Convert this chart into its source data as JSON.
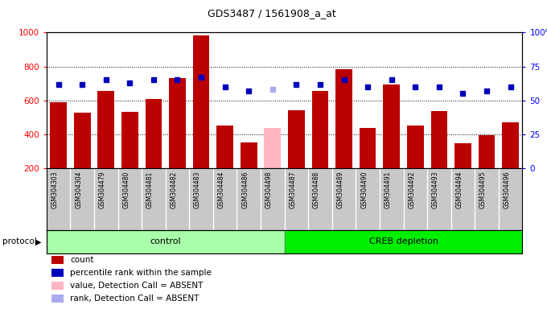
{
  "title": "GDS3487 / 1561908_a_at",
  "samples": [
    "GSM304303",
    "GSM304304",
    "GSM304479",
    "GSM304480",
    "GSM304481",
    "GSM304482",
    "GSM304483",
    "GSM304484",
    "GSM304486",
    "GSM304498",
    "GSM304487",
    "GSM304488",
    "GSM304489",
    "GSM304490",
    "GSM304491",
    "GSM304492",
    "GSM304493",
    "GSM304494",
    "GSM304495",
    "GSM304496"
  ],
  "counts": [
    590,
    527,
    655,
    533,
    607,
    731,
    981,
    453,
    355,
    440,
    543,
    657,
    786,
    440,
    693,
    450,
    537,
    350,
    395,
    470
  ],
  "percentiles": [
    62,
    62,
    65,
    63,
    65,
    65,
    67,
    60,
    57,
    58,
    62,
    62,
    65,
    60,
    65,
    60,
    60,
    55,
    57,
    60
  ],
  "absent": [
    false,
    false,
    false,
    false,
    false,
    false,
    false,
    false,
    false,
    true,
    false,
    false,
    false,
    false,
    false,
    false,
    false,
    false,
    false,
    false
  ],
  "absent_rank": [
    false,
    false,
    false,
    false,
    false,
    false,
    false,
    false,
    false,
    true,
    false,
    false,
    false,
    false,
    false,
    false,
    false,
    false,
    false,
    false
  ],
  "control_count": 10,
  "bar_color_present": "#bb0000",
  "bar_color_absent": "#ffb6c1",
  "dot_color_present": "#0000bb",
  "dot_color_absent": "#aaaaee",
  "ylim_left": [
    200,
    1000
  ],
  "ylim_right": [
    0,
    100
  ],
  "yticks_left": [
    200,
    400,
    600,
    800,
    1000
  ],
  "yticks_right": [
    0,
    25,
    50,
    75,
    100
  ],
  "hlines": [
    400,
    600,
    800
  ],
  "tick_bg": "#c8c8c8",
  "plot_bg": "#ffffff",
  "control_color": "#aaffaa",
  "creb_color": "#00ee00",
  "legend_items": [
    {
      "color": "#bb0000",
      "marker": "s",
      "label": "count"
    },
    {
      "color": "#0000bb",
      "marker": "s",
      "label": "percentile rank within the sample"
    },
    {
      "color": "#ffb6c1",
      "marker": "s",
      "label": "value, Detection Call = ABSENT"
    },
    {
      "color": "#aaaaee",
      "marker": "s",
      "label": "rank, Detection Call = ABSENT"
    }
  ]
}
